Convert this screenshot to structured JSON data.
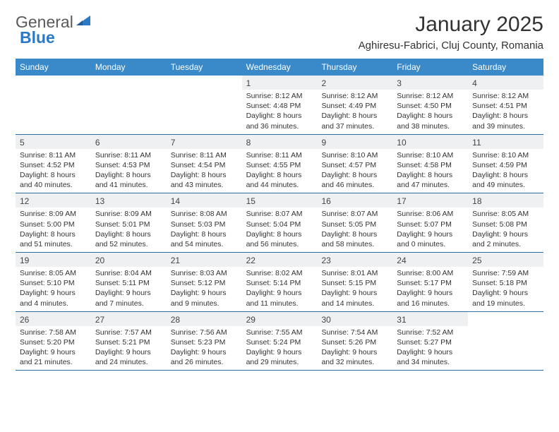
{
  "logo": {
    "text1": "General",
    "text2": "Blue"
  },
  "title": "January 2025",
  "location": "Aghiresu-Fabrici, Cluj County, Romania",
  "colors": {
    "header_bg": "#3a89c9",
    "header_text": "#ffffff",
    "daynum_bg": "#eef0f1",
    "border": "#2b6ea3",
    "logo_gray": "#5a5a5a",
    "logo_blue": "#2b78c5"
  },
  "weekdays": [
    "Sunday",
    "Monday",
    "Tuesday",
    "Wednesday",
    "Thursday",
    "Friday",
    "Saturday"
  ],
  "weeks": [
    [
      {
        "n": "",
        "empty": true
      },
      {
        "n": "",
        "empty": true
      },
      {
        "n": "",
        "empty": true
      },
      {
        "n": "1",
        "sr": "Sunrise: 8:12 AM",
        "ss": "Sunset: 4:48 PM",
        "d1": "Daylight: 8 hours",
        "d2": "and 36 minutes."
      },
      {
        "n": "2",
        "sr": "Sunrise: 8:12 AM",
        "ss": "Sunset: 4:49 PM",
        "d1": "Daylight: 8 hours",
        "d2": "and 37 minutes."
      },
      {
        "n": "3",
        "sr": "Sunrise: 8:12 AM",
        "ss": "Sunset: 4:50 PM",
        "d1": "Daylight: 8 hours",
        "d2": "and 38 minutes."
      },
      {
        "n": "4",
        "sr": "Sunrise: 8:12 AM",
        "ss": "Sunset: 4:51 PM",
        "d1": "Daylight: 8 hours",
        "d2": "and 39 minutes."
      }
    ],
    [
      {
        "n": "5",
        "sr": "Sunrise: 8:11 AM",
        "ss": "Sunset: 4:52 PM",
        "d1": "Daylight: 8 hours",
        "d2": "and 40 minutes."
      },
      {
        "n": "6",
        "sr": "Sunrise: 8:11 AM",
        "ss": "Sunset: 4:53 PM",
        "d1": "Daylight: 8 hours",
        "d2": "and 41 minutes."
      },
      {
        "n": "7",
        "sr": "Sunrise: 8:11 AM",
        "ss": "Sunset: 4:54 PM",
        "d1": "Daylight: 8 hours",
        "d2": "and 43 minutes."
      },
      {
        "n": "8",
        "sr": "Sunrise: 8:11 AM",
        "ss": "Sunset: 4:55 PM",
        "d1": "Daylight: 8 hours",
        "d2": "and 44 minutes."
      },
      {
        "n": "9",
        "sr": "Sunrise: 8:10 AM",
        "ss": "Sunset: 4:57 PM",
        "d1": "Daylight: 8 hours",
        "d2": "and 46 minutes."
      },
      {
        "n": "10",
        "sr": "Sunrise: 8:10 AM",
        "ss": "Sunset: 4:58 PM",
        "d1": "Daylight: 8 hours",
        "d2": "and 47 minutes."
      },
      {
        "n": "11",
        "sr": "Sunrise: 8:10 AM",
        "ss": "Sunset: 4:59 PM",
        "d1": "Daylight: 8 hours",
        "d2": "and 49 minutes."
      }
    ],
    [
      {
        "n": "12",
        "sr": "Sunrise: 8:09 AM",
        "ss": "Sunset: 5:00 PM",
        "d1": "Daylight: 8 hours",
        "d2": "and 51 minutes."
      },
      {
        "n": "13",
        "sr": "Sunrise: 8:09 AM",
        "ss": "Sunset: 5:01 PM",
        "d1": "Daylight: 8 hours",
        "d2": "and 52 minutes."
      },
      {
        "n": "14",
        "sr": "Sunrise: 8:08 AM",
        "ss": "Sunset: 5:03 PM",
        "d1": "Daylight: 8 hours",
        "d2": "and 54 minutes."
      },
      {
        "n": "15",
        "sr": "Sunrise: 8:07 AM",
        "ss": "Sunset: 5:04 PM",
        "d1": "Daylight: 8 hours",
        "d2": "and 56 minutes."
      },
      {
        "n": "16",
        "sr": "Sunrise: 8:07 AM",
        "ss": "Sunset: 5:05 PM",
        "d1": "Daylight: 8 hours",
        "d2": "and 58 minutes."
      },
      {
        "n": "17",
        "sr": "Sunrise: 8:06 AM",
        "ss": "Sunset: 5:07 PM",
        "d1": "Daylight: 9 hours",
        "d2": "and 0 minutes."
      },
      {
        "n": "18",
        "sr": "Sunrise: 8:05 AM",
        "ss": "Sunset: 5:08 PM",
        "d1": "Daylight: 9 hours",
        "d2": "and 2 minutes."
      }
    ],
    [
      {
        "n": "19",
        "sr": "Sunrise: 8:05 AM",
        "ss": "Sunset: 5:10 PM",
        "d1": "Daylight: 9 hours",
        "d2": "and 4 minutes."
      },
      {
        "n": "20",
        "sr": "Sunrise: 8:04 AM",
        "ss": "Sunset: 5:11 PM",
        "d1": "Daylight: 9 hours",
        "d2": "and 7 minutes."
      },
      {
        "n": "21",
        "sr": "Sunrise: 8:03 AM",
        "ss": "Sunset: 5:12 PM",
        "d1": "Daylight: 9 hours",
        "d2": "and 9 minutes."
      },
      {
        "n": "22",
        "sr": "Sunrise: 8:02 AM",
        "ss": "Sunset: 5:14 PM",
        "d1": "Daylight: 9 hours",
        "d2": "and 11 minutes."
      },
      {
        "n": "23",
        "sr": "Sunrise: 8:01 AM",
        "ss": "Sunset: 5:15 PM",
        "d1": "Daylight: 9 hours",
        "d2": "and 14 minutes."
      },
      {
        "n": "24",
        "sr": "Sunrise: 8:00 AM",
        "ss": "Sunset: 5:17 PM",
        "d1": "Daylight: 9 hours",
        "d2": "and 16 minutes."
      },
      {
        "n": "25",
        "sr": "Sunrise: 7:59 AM",
        "ss": "Sunset: 5:18 PM",
        "d1": "Daylight: 9 hours",
        "d2": "and 19 minutes."
      }
    ],
    [
      {
        "n": "26",
        "sr": "Sunrise: 7:58 AM",
        "ss": "Sunset: 5:20 PM",
        "d1": "Daylight: 9 hours",
        "d2": "and 21 minutes."
      },
      {
        "n": "27",
        "sr": "Sunrise: 7:57 AM",
        "ss": "Sunset: 5:21 PM",
        "d1": "Daylight: 9 hours",
        "d2": "and 24 minutes."
      },
      {
        "n": "28",
        "sr": "Sunrise: 7:56 AM",
        "ss": "Sunset: 5:23 PM",
        "d1": "Daylight: 9 hours",
        "d2": "and 26 minutes."
      },
      {
        "n": "29",
        "sr": "Sunrise: 7:55 AM",
        "ss": "Sunset: 5:24 PM",
        "d1": "Daylight: 9 hours",
        "d2": "and 29 minutes."
      },
      {
        "n": "30",
        "sr": "Sunrise: 7:54 AM",
        "ss": "Sunset: 5:26 PM",
        "d1": "Daylight: 9 hours",
        "d2": "and 32 minutes."
      },
      {
        "n": "31",
        "sr": "Sunrise: 7:52 AM",
        "ss": "Sunset: 5:27 PM",
        "d1": "Daylight: 9 hours",
        "d2": "and 34 minutes."
      },
      {
        "n": "",
        "empty": true
      }
    ]
  ]
}
